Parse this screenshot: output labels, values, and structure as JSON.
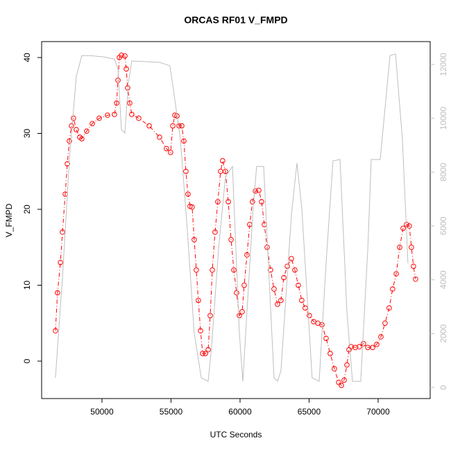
{
  "chart_data": {
    "type": "line",
    "title": "ORCAS RF01 V_FMPD",
    "xlabel": "UTC Seconds",
    "ylabel": "V_FMPD",
    "xlim": [
      45630,
      73770
    ],
    "xticks": [
      50000,
      55000,
      60000,
      65000,
      70000
    ],
    "ylim": [
      -4.93,
      42.1
    ],
    "yticks": [
      0,
      10,
      20,
      30,
      40
    ],
    "y2lim": [
      -412,
      12850
    ],
    "y2ticks": [
      0,
      2000,
      4000,
      6000,
      8000,
      10000,
      12000
    ],
    "series": [
      {
        "color": "#ff0000",
        "marker": "circle",
        "line": "dashdot",
        "x": [
          46630,
          46780,
          46990,
          47140,
          47340,
          47490,
          47640,
          47790,
          47940,
          48140,
          48390,
          48540,
          48890,
          49300,
          49800,
          50400,
          50900,
          51060,
          51160,
          51260,
          51410,
          51660,
          51760,
          51860,
          52010,
          52160,
          52660,
          53420,
          54170,
          54670,
          54970,
          55130,
          55280,
          55430,
          55580,
          55780,
          55930,
          56080,
          56230,
          56380,
          56530,
          56680,
          56830,
          56980,
          57140,
          57290,
          57490,
          57690,
          57840,
          57990,
          58190,
          58390,
          58590,
          58740,
          58940,
          59150,
          59350,
          59550,
          59750,
          59950,
          60150,
          60300,
          60500,
          60700,
          60900,
          61110,
          61360,
          61560,
          61760,
          61960,
          62210,
          62460,
          62710,
          62960,
          63170,
          63420,
          63720,
          63970,
          64220,
          64470,
          64720,
          65020,
          65330,
          65630,
          65930,
          66230,
          66530,
          66830,
          67140,
          67340,
          67540,
          67740,
          67890,
          68040,
          68340,
          68640,
          68940,
          69250,
          69600,
          69900,
          70200,
          70500,
          70800,
          71050,
          71310,
          71560,
          71810,
          72060,
          72260,
          72410,
          72560,
          72710
        ],
        "values": [
          4,
          9,
          13,
          17,
          22,
          26,
          29,
          31,
          32,
          30.5,
          29.5,
          29.3,
          30.3,
          31.3,
          32,
          32.4,
          32.5,
          34,
          37,
          40,
          40.3,
          40.2,
          38.5,
          36,
          34,
          32.5,
          32,
          31,
          29.5,
          28,
          27.5,
          31,
          32.4,
          32.3,
          31,
          31,
          29,
          25,
          22,
          20.4,
          20.3,
          16,
          12,
          8,
          4,
          1,
          1,
          1.5,
          6,
          12,
          17,
          21,
          25,
          26.4,
          25,
          21,
          16,
          12,
          9,
          6,
          6.5,
          10,
          14,
          18,
          21,
          22.4,
          22.5,
          21,
          18,
          15,
          12,
          9.5,
          7.5,
          8,
          11,
          12.5,
          13.5,
          12,
          10,
          8,
          7,
          6,
          5.2,
          5,
          4.8,
          3,
          1,
          -1,
          -2.8,
          -3.2,
          -2.5,
          -0.5,
          1.5,
          1.9,
          1.8,
          1.9,
          2.3,
          1.8,
          1.8,
          2.2,
          3.2,
          5,
          7,
          9.5,
          11.5,
          15,
          17.5,
          18,
          17.8,
          15,
          12.5,
          10.8
        ]
      },
      {
        "color": "#bebebe",
        "axis": "y2",
        "x": [
          46630,
          47140,
          47640,
          48140,
          48540,
          49150,
          50150,
          50900,
          51160,
          51410,
          51660,
          51910,
          52160,
          54170,
          54920,
          55180,
          55680,
          56180,
          56680,
          57190,
          57690,
          57940,
          58440,
          58940,
          59450,
          59950,
          60200,
          60950,
          61200,
          61710,
          62460,
          62710,
          62960,
          63720,
          64120,
          64470,
          65220,
          65730,
          66230,
          66730,
          67240,
          67740,
          68140,
          68740,
          69250,
          69500,
          70150,
          70860,
          71260,
          71760,
          72160
        ],
        "values": [
          360,
          4090,
          8470,
          11560,
          12330,
          12330,
          12280,
          12200,
          11820,
          9580,
          9450,
          11300,
          12130,
          12080,
          11950,
          11050,
          9210,
          5870,
          2030,
          360,
          230,
          1520,
          5120,
          7830,
          8210,
          2030,
          230,
          6670,
          8210,
          8210,
          360,
          230,
          620,
          6410,
          8340,
          6670,
          360,
          230,
          4610,
          8420,
          8470,
          2810,
          230,
          230,
          5120,
          8470,
          8470,
          12330,
          12390,
          9210,
          4610
        ]
      }
    ]
  }
}
